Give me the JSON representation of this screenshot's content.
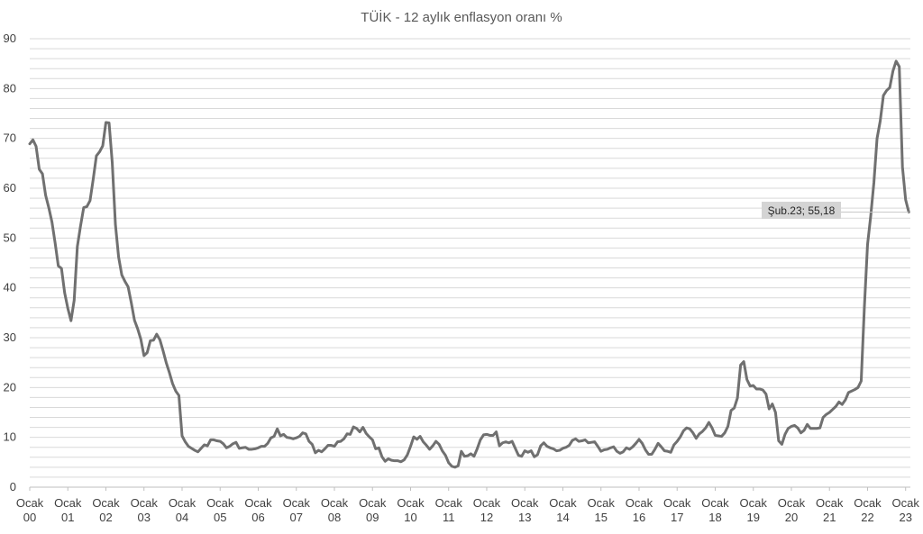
{
  "chart_data": {
    "type": "line",
    "title": "TÜİK - 12 aylık enflasyon oranı %",
    "xlabel": "",
    "ylabel": "",
    "ylim": [
      0,
      90
    ],
    "yticks": [
      0,
      10,
      20,
      30,
      40,
      50,
      60,
      70,
      80,
      90
    ],
    "grid": true,
    "x_start": "2000-01",
    "x_end": "2023-02",
    "xtick_labels": [
      [
        "Ocak",
        "00"
      ],
      [
        "Ocak",
        "01"
      ],
      [
        "Ocak",
        "02"
      ],
      [
        "Ocak",
        "03"
      ],
      [
        "Ocak",
        "04"
      ],
      [
        "Ocak",
        "05"
      ],
      [
        "Ocak",
        "06"
      ],
      [
        "Ocak",
        "07"
      ],
      [
        "Ocak",
        "08"
      ],
      [
        "Ocak",
        "09"
      ],
      [
        "Ocak",
        "10"
      ],
      [
        "Ocak",
        "11"
      ],
      [
        "Ocak",
        "12"
      ],
      [
        "Ocak",
        "13"
      ],
      [
        "Ocak",
        "14"
      ],
      [
        "Ocak",
        "15"
      ],
      [
        "Ocak",
        "16"
      ],
      [
        "Ocak",
        "17"
      ],
      [
        "Ocak",
        "18"
      ],
      [
        "Ocak",
        "19"
      ],
      [
        "Ocak",
        "20"
      ],
      [
        "Ocak",
        "21"
      ],
      [
        "Ocak",
        "22"
      ],
      [
        "Ocak",
        "23"
      ]
    ],
    "series": [
      {
        "color": "#707070",
        "values": [
          68.9,
          69.7,
          68.4,
          63.8,
          62.9,
          58.6,
          56.1,
          53.2,
          49.0,
          44.4,
          43.9,
          39.0,
          35.9,
          33.4,
          37.5,
          48.3,
          52.4,
          56.1,
          56.3,
          57.5,
          61.8,
          66.5,
          67.3,
          68.5,
          73.2,
          73.1,
          65.1,
          52.7,
          46.2,
          42.6,
          41.3,
          40.2,
          37.0,
          33.5,
          31.8,
          29.7,
          26.4,
          27.0,
          29.4,
          29.5,
          30.7,
          29.6,
          27.4,
          25.0,
          23.0,
          20.8,
          19.3,
          18.4,
          10.3,
          9.1,
          8.2,
          7.8,
          7.4,
          7.1,
          7.8,
          8.5,
          8.3,
          9.5,
          9.5,
          9.3,
          9.2,
          8.7,
          7.9,
          8.2,
          8.7,
          9.0,
          7.8,
          7.9,
          8.0,
          7.6,
          7.6,
          7.7,
          7.9,
          8.2,
          8.2,
          8.8,
          9.9,
          10.2,
          11.7,
          10.3,
          10.6,
          10.0,
          9.9,
          9.7,
          9.9,
          10.2,
          10.9,
          10.7,
          9.2,
          8.6,
          6.9,
          7.4,
          7.1,
          7.7,
          8.4,
          8.4,
          8.2,
          9.1,
          9.2,
          9.7,
          10.7,
          10.6,
          12.1,
          11.8,
          11.1,
          12.0,
          10.8,
          10.1,
          9.5,
          7.7,
          7.9,
          6.1,
          5.2,
          5.7,
          5.4,
          5.3,
          5.3,
          5.1,
          5.5,
          6.5,
          8.2,
          10.1,
          9.6,
          10.2,
          9.1,
          8.4,
          7.6,
          8.3,
          9.2,
          8.6,
          7.3,
          6.4,
          4.9,
          4.2,
          4.0,
          4.3,
          7.2,
          6.2,
          6.3,
          6.7,
          6.2,
          7.7,
          9.5,
          10.5,
          10.6,
          10.4,
          10.4,
          11.1,
          8.3,
          8.9,
          9.1,
          8.9,
          9.2,
          7.8,
          6.4,
          6.2,
          7.3,
          7.0,
          7.3,
          6.1,
          6.5,
          8.3,
          8.9,
          8.2,
          7.9,
          7.7,
          7.3,
          7.4,
          7.8,
          8.0,
          8.4,
          9.4,
          9.7,
          9.2,
          9.3,
          9.5,
          8.9,
          9.0,
          9.1,
          8.2,
          7.2,
          7.5,
          7.6,
          7.9,
          8.1,
          7.2,
          6.8,
          7.1,
          7.9,
          7.6,
          8.1,
          8.8,
          9.6,
          8.8,
          7.5,
          6.6,
          6.6,
          7.6,
          8.8,
          8.1,
          7.3,
          7.2,
          7.0,
          8.5,
          9.2,
          10.1,
          11.3,
          11.9,
          11.7,
          10.9,
          9.8,
          10.7,
          11.2,
          11.9,
          13.0,
          11.9,
          10.4,
          10.3,
          10.2,
          10.9,
          12.2,
          15.4,
          15.9,
          17.9,
          24.5,
          25.2,
          21.6,
          20.3,
          20.4,
          19.7,
          19.7,
          19.5,
          18.7,
          15.7,
          16.7,
          15.0,
          9.3,
          8.6,
          10.6,
          11.8,
          12.2,
          12.4,
          11.9,
          10.9,
          11.4,
          12.6,
          11.8,
          11.8,
          11.8,
          11.9,
          14.0,
          14.6,
          15.0,
          15.6,
          16.2,
          17.1,
          16.6,
          17.5,
          19.0,
          19.3,
          19.6,
          20.0,
          21.3,
          36.1,
          48.7,
          54.4,
          61.1,
          70.0,
          73.5,
          78.6,
          79.6,
          80.2,
          83.5,
          85.5,
          84.4,
          64.3,
          57.7,
          55.2
        ]
      }
    ],
    "annotations": [
      {
        "label": "Şub.23; 55,18",
        "x": "2023-02",
        "y": 55.18
      }
    ]
  }
}
